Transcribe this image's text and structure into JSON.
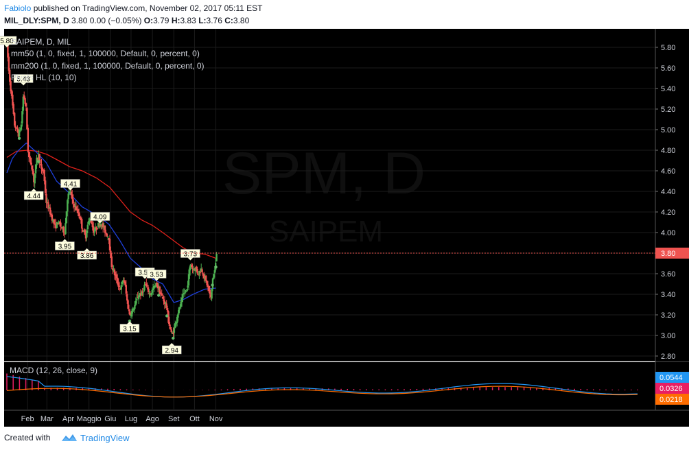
{
  "header": {
    "author": "Fabiolo",
    "published_text": "published on TradingView.com, November 02, 2017 05:11 EST",
    "symbol_line": "MIL_DLY:SPM, D",
    "price_change": "3.80 0.00 (−0.05%)",
    "ohlc": {
      "o_label": "O:",
      "o": "3.79",
      "h_label": "H:",
      "h": "3.83",
      "l_label": "L:",
      "l": "3.76",
      "c_label": "C:",
      "c": "3.80"
    }
  },
  "legend": {
    "series_title": "SAIPEM, D, MIL",
    "indicators": [
      "mm50 (1, 0, fixed, 1, 100000, Default, 0, percent, 0)",
      "mm200 (1, 0, fixed, 1, 100000, Default, 0, percent, 0)",
      "Pivots HL (10, 10)"
    ],
    "macd": "MACD (12, 26, close, 9)"
  },
  "watermark": {
    "symbol": "SPM, D",
    "name": "SAIPEM"
  },
  "footer": {
    "created_with": "Created with",
    "brand": "TradingView"
  },
  "colors": {
    "background": "#000000",
    "up": "#4caf50",
    "down": "#ef5350",
    "mm50": "#1e3fd8",
    "mm200": "#e0211b",
    "macd": "#2196f3",
    "signal": "#ff6d00",
    "histogram": "#e91e63"
  },
  "chart_data": {
    "type": "candlestick",
    "title": "MIL_DLY:SPM, D",
    "y_axis": {
      "ylim": [
        2.77,
        5.93
      ],
      "ticks": [
        "5.80",
        "5.60",
        "5.40",
        "5.20",
        "5.00",
        "4.80",
        "4.60",
        "4.40",
        "4.20",
        "4.00",
        "3.80",
        "3.60",
        "3.40",
        "3.20",
        "3.00",
        "2.80"
      ]
    },
    "x_axis": {
      "ticks": [
        "Feb",
        "Mar",
        "Apr",
        "Maggio",
        "Giu",
        "Lug",
        "Ago",
        "Set",
        "Ott",
        "Nov"
      ]
    },
    "last_price": {
      "value": 3.8,
      "label": "3.80"
    },
    "price_path": [
      [
        "2017-01-02",
        5.83
      ],
      [
        "2017-01-05",
        5.55
      ],
      [
        "2017-01-10",
        5.25
      ],
      [
        "2017-01-13",
        5.05
      ],
      [
        "2017-01-19",
        4.95
      ],
      [
        "2017-01-23",
        5.05
      ],
      [
        "2017-01-26",
        5.35
      ],
      [
        "2017-01-30",
        5.2
      ],
      [
        "2017-02-02",
        4.75
      ],
      [
        "2017-02-07",
        4.65
      ],
      [
        "2017-02-10",
        4.5
      ],
      [
        "2017-02-14",
        4.7
      ],
      [
        "2017-02-17",
        4.75
      ],
      [
        "2017-02-21",
        4.6
      ],
      [
        "2017-02-24",
        4.6
      ],
      [
        "2017-02-28",
        4.3
      ],
      [
        "2017-03-03",
        4.25
      ],
      [
        "2017-03-08",
        4.15
      ],
      [
        "2017-03-13",
        4.05
      ],
      [
        "2017-03-17",
        4.1
      ],
      [
        "2017-03-22",
        4.05
      ],
      [
        "2017-03-27",
        4.0
      ],
      [
        "2017-03-31",
        4.35
      ],
      [
        "2017-04-04",
        4.4
      ],
      [
        "2017-04-07",
        4.3
      ],
      [
        "2017-04-11",
        4.25
      ],
      [
        "2017-04-18",
        4.15
      ],
      [
        "2017-04-21",
        4.05
      ],
      [
        "2017-04-26",
        3.95
      ],
      [
        "2017-04-28",
        4.05
      ],
      [
        "2017-05-03",
        4.15
      ],
      [
        "2017-05-08",
        4.0
      ],
      [
        "2017-05-12",
        4.05
      ],
      [
        "2017-05-17",
        4.1
      ],
      [
        "2017-05-22",
        4.05
      ],
      [
        "2017-05-25",
        4.0
      ],
      [
        "2017-05-30",
        3.95
      ],
      [
        "2017-06-02",
        3.7
      ],
      [
        "2017-06-07",
        3.6
      ],
      [
        "2017-06-12",
        3.5
      ],
      [
        "2017-06-16",
        3.45
      ],
      [
        "2017-06-20",
        3.55
      ],
      [
        "2017-06-22",
        3.5
      ],
      [
        "2017-06-26",
        3.3
      ],
      [
        "2017-06-29",
        3.2
      ],
      [
        "2017-07-04",
        3.25
      ],
      [
        "2017-07-07",
        3.3
      ],
      [
        "2017-07-12",
        3.4
      ],
      [
        "2017-07-17",
        3.4
      ],
      [
        "2017-07-21",
        3.5
      ],
      [
        "2017-07-25",
        3.45
      ],
      [
        "2017-07-28",
        3.4
      ],
      [
        "2017-08-02",
        3.45
      ],
      [
        "2017-08-07",
        3.5
      ],
      [
        "2017-08-10",
        3.45
      ],
      [
        "2017-08-16",
        3.35
      ],
      [
        "2017-08-21",
        3.3
      ],
      [
        "2017-08-24",
        3.15
      ],
      [
        "2017-08-29",
        3.0
      ],
      [
        "2017-09-01",
        3.05
      ],
      [
        "2017-09-06",
        3.2
      ],
      [
        "2017-09-11",
        3.3
      ],
      [
        "2017-09-15",
        3.4
      ],
      [
        "2017-09-20",
        3.45
      ],
      [
        "2017-09-25",
        3.7
      ],
      [
        "2017-09-28",
        3.65
      ],
      [
        "2017-10-03",
        3.65
      ],
      [
        "2017-10-06",
        3.6
      ],
      [
        "2017-10-11",
        3.65
      ],
      [
        "2017-10-16",
        3.55
      ],
      [
        "2017-10-19",
        3.5
      ],
      [
        "2017-10-23",
        3.4
      ],
      [
        "2017-10-25",
        3.35
      ],
      [
        "2017-10-27",
        3.55
      ],
      [
        "2017-10-31",
        3.65
      ],
      [
        "2017-11-02",
        3.8
      ]
    ],
    "mm50": [
      [
        "2017-01-02",
        4.58
      ],
      [
        "2017-01-10",
        4.72
      ],
      [
        "2017-01-19",
        4.8
      ],
      [
        "2017-01-30",
        4.87
      ],
      [
        "2017-02-14",
        4.78
      ],
      [
        "2017-02-28",
        4.68
      ],
      [
        "2017-03-15",
        4.5
      ],
      [
        "2017-04-03",
        4.38
      ],
      [
        "2017-04-21",
        4.25
      ],
      [
        "2017-05-12",
        4.17
      ],
      [
        "2017-05-30",
        4.08
      ],
      [
        "2017-06-15",
        3.92
      ],
      [
        "2017-06-30",
        3.75
      ],
      [
        "2017-07-17",
        3.65
      ],
      [
        "2017-08-01",
        3.55
      ],
      [
        "2017-08-16",
        3.5
      ],
      [
        "2017-09-01",
        3.32
      ],
      [
        "2017-09-15",
        3.35
      ],
      [
        "2017-09-29",
        3.4
      ],
      [
        "2017-10-16",
        3.45
      ],
      [
        "2017-11-01",
        3.46
      ]
    ],
    "mm200": [
      [
        "2017-01-02",
        4.73
      ],
      [
        "2017-01-16",
        4.79
      ],
      [
        "2017-02-01",
        4.8
      ],
      [
        "2017-02-15",
        4.79
      ],
      [
        "2017-03-01",
        4.76
      ],
      [
        "2017-03-15",
        4.71
      ],
      [
        "2017-04-03",
        4.64
      ],
      [
        "2017-04-21",
        4.6
      ],
      [
        "2017-05-12",
        4.53
      ],
      [
        "2017-05-31",
        4.44
      ],
      [
        "2017-06-15",
        4.32
      ],
      [
        "2017-06-30",
        4.2
      ],
      [
        "2017-07-17",
        4.12
      ],
      [
        "2017-08-01",
        4.07
      ],
      [
        "2017-08-16",
        4.0
      ],
      [
        "2017-09-01",
        3.92
      ],
      [
        "2017-09-15",
        3.85
      ],
      [
        "2017-09-29",
        3.8
      ],
      [
        "2017-10-16",
        3.79
      ],
      [
        "2017-11-01",
        3.75
      ]
    ],
    "pivot_labels": [
      {
        "date": "2017-01-02",
        "value": 5.8,
        "label": "5.80",
        "position": "high"
      },
      {
        "date": "2017-01-26",
        "value": 5.43,
        "label": "5.43",
        "position": "high"
      },
      {
        "date": "2017-02-10",
        "value": 4.44,
        "label": "4.44",
        "position": "low"
      },
      {
        "date": "2017-03-27",
        "value": 3.95,
        "label": "3.95",
        "position": "low"
      },
      {
        "date": "2017-04-04",
        "value": 4.41,
        "label": "4.41",
        "position": "high"
      },
      {
        "date": "2017-04-28",
        "value": 3.86,
        "label": "3.86",
        "position": "low"
      },
      {
        "date": "2017-05-17",
        "value": 4.09,
        "label": "4.09",
        "position": "high"
      },
      {
        "date": "2017-06-29",
        "value": 3.15,
        "label": "3.15",
        "position": "low"
      },
      {
        "date": "2017-07-21",
        "value": 3.55,
        "label": "3.55",
        "position": "high"
      },
      {
        "date": "2017-08-07",
        "value": 3.53,
        "label": "3.53",
        "position": "high"
      },
      {
        "date": "2017-08-29",
        "value": 2.94,
        "label": "2.94",
        "position": "low"
      },
      {
        "date": "2017-09-25",
        "value": 3.73,
        "label": "3.73",
        "position": "high"
      }
    ],
    "macd_panel": {
      "title": "MACD (12, 26, close, 9)",
      "macd_value": "0.0544",
      "histogram_value": "0.0326",
      "signal_value": "0.0218"
    }
  }
}
